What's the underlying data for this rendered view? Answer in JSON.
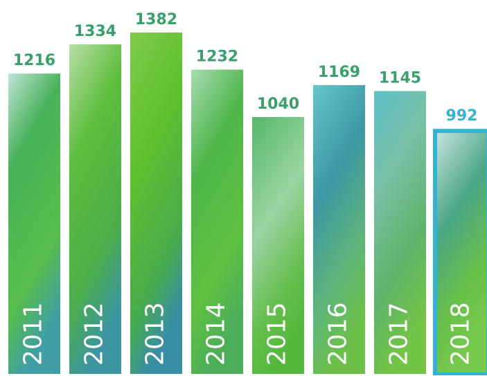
{
  "chart_data": {
    "type": "bar",
    "categories": [
      "2011",
      "2012",
      "2013",
      "2014",
      "2015",
      "2016",
      "2017",
      "2018"
    ],
    "values": [
      1216,
      1334,
      1382,
      1232,
      1040,
      1169,
      1145,
      992
    ],
    "label_color": "#3a9f6c",
    "highlight": {
      "index": 7,
      "color": "#33b3d3"
    }
  }
}
